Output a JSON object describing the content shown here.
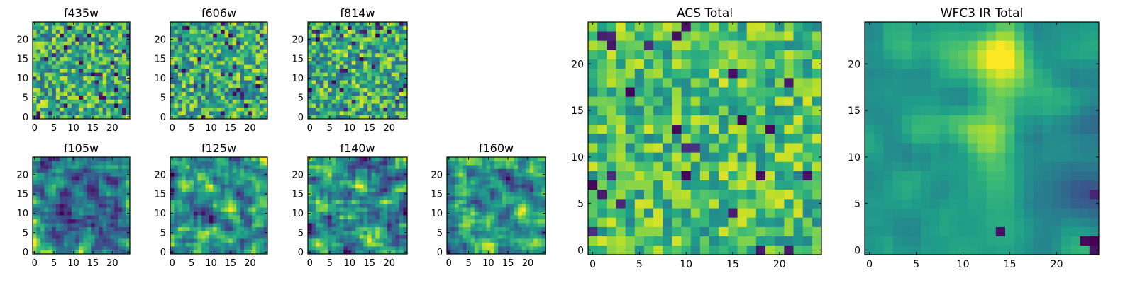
{
  "chart_data": [
    {
      "type": "heatmap",
      "title": "f435w",
      "x_ticks": [
        0,
        5,
        10,
        15,
        20
      ],
      "y_ticks": [
        0,
        5,
        10,
        15,
        20
      ],
      "xlim": [
        -0.5,
        24.5
      ],
      "ylim": [
        -0.5,
        24.5
      ],
      "grid": false,
      "colormap": "viridis",
      "pattern": "pixel-noise",
      "seed": 11
    },
    {
      "type": "heatmap",
      "title": "f606w",
      "x_ticks": [
        0,
        5,
        10,
        15,
        20
      ],
      "y_ticks": [
        0,
        5,
        10,
        15,
        20
      ],
      "xlim": [
        -0.5,
        24.5
      ],
      "ylim": [
        -0.5,
        24.5
      ],
      "grid": false,
      "colormap": "viridis",
      "pattern": "pixel-noise",
      "seed": 22
    },
    {
      "type": "heatmap",
      "title": "f814w",
      "x_ticks": [
        0,
        5,
        10,
        15,
        20
      ],
      "y_ticks": [
        0,
        5,
        10,
        15,
        20
      ],
      "xlim": [
        -0.5,
        24.5
      ],
      "ylim": [
        -0.5,
        24.5
      ],
      "grid": false,
      "colormap": "viridis",
      "pattern": "pixel-noise",
      "seed": 33
    },
    {
      "type": "heatmap",
      "title": "f105w",
      "x_ticks": [
        0,
        5,
        10,
        15,
        20
      ],
      "y_ticks": [
        0,
        5,
        10,
        15,
        20
      ],
      "xlim": [
        -0.5,
        24.5
      ],
      "ylim": [
        -0.5,
        24.5
      ],
      "grid": false,
      "colormap": "viridis",
      "pattern": "smooth-noise",
      "seed": 44
    },
    {
      "type": "heatmap",
      "title": "f125w",
      "x_ticks": [
        0,
        5,
        10,
        15,
        20
      ],
      "y_ticks": [
        0,
        5,
        10,
        15,
        20
      ],
      "xlim": [
        -0.5,
        24.5
      ],
      "ylim": [
        -0.5,
        24.5
      ],
      "grid": false,
      "colormap": "viridis",
      "pattern": "smooth-noise",
      "seed": 55
    },
    {
      "type": "heatmap",
      "title": "f140w",
      "x_ticks": [
        0,
        5,
        10,
        15,
        20
      ],
      "y_ticks": [
        0,
        5,
        10,
        15,
        20
      ],
      "xlim": [
        -0.5,
        24.5
      ],
      "ylim": [
        -0.5,
        24.5
      ],
      "grid": false,
      "colormap": "viridis",
      "pattern": "smooth-noise",
      "seed": 66
    },
    {
      "type": "heatmap",
      "title": "f160w",
      "x_ticks": [
        0,
        5,
        10,
        15,
        20
      ],
      "y_ticks": [
        0,
        5,
        10,
        15,
        20
      ],
      "xlim": [
        -0.5,
        24.5
      ],
      "ylim": [
        -0.5,
        24.5
      ],
      "grid": false,
      "colormap": "viridis",
      "pattern": "smooth-noise",
      "seed": 77
    },
    {
      "type": "heatmap",
      "title": "ACS Total",
      "x_ticks": [
        0,
        5,
        10,
        15,
        20
      ],
      "y_ticks": [
        0,
        5,
        10,
        15,
        20
      ],
      "xlim": [
        -0.5,
        24.5
      ],
      "ylim": [
        -0.5,
        24.5
      ],
      "grid": false,
      "colormap": "viridis",
      "pattern": "pixel-noise-bright",
      "seed": 88
    },
    {
      "type": "heatmap",
      "title": "WFC3 IR Total",
      "x_ticks": [
        0,
        5,
        10,
        15,
        20
      ],
      "y_ticks": [
        0,
        5,
        10,
        15,
        20
      ],
      "xlim": [
        -0.5,
        24.5
      ],
      "ylim": [
        -0.5,
        24.5
      ],
      "grid": false,
      "colormap": "viridis",
      "pattern": "smooth-blob",
      "seed": 99
    }
  ]
}
